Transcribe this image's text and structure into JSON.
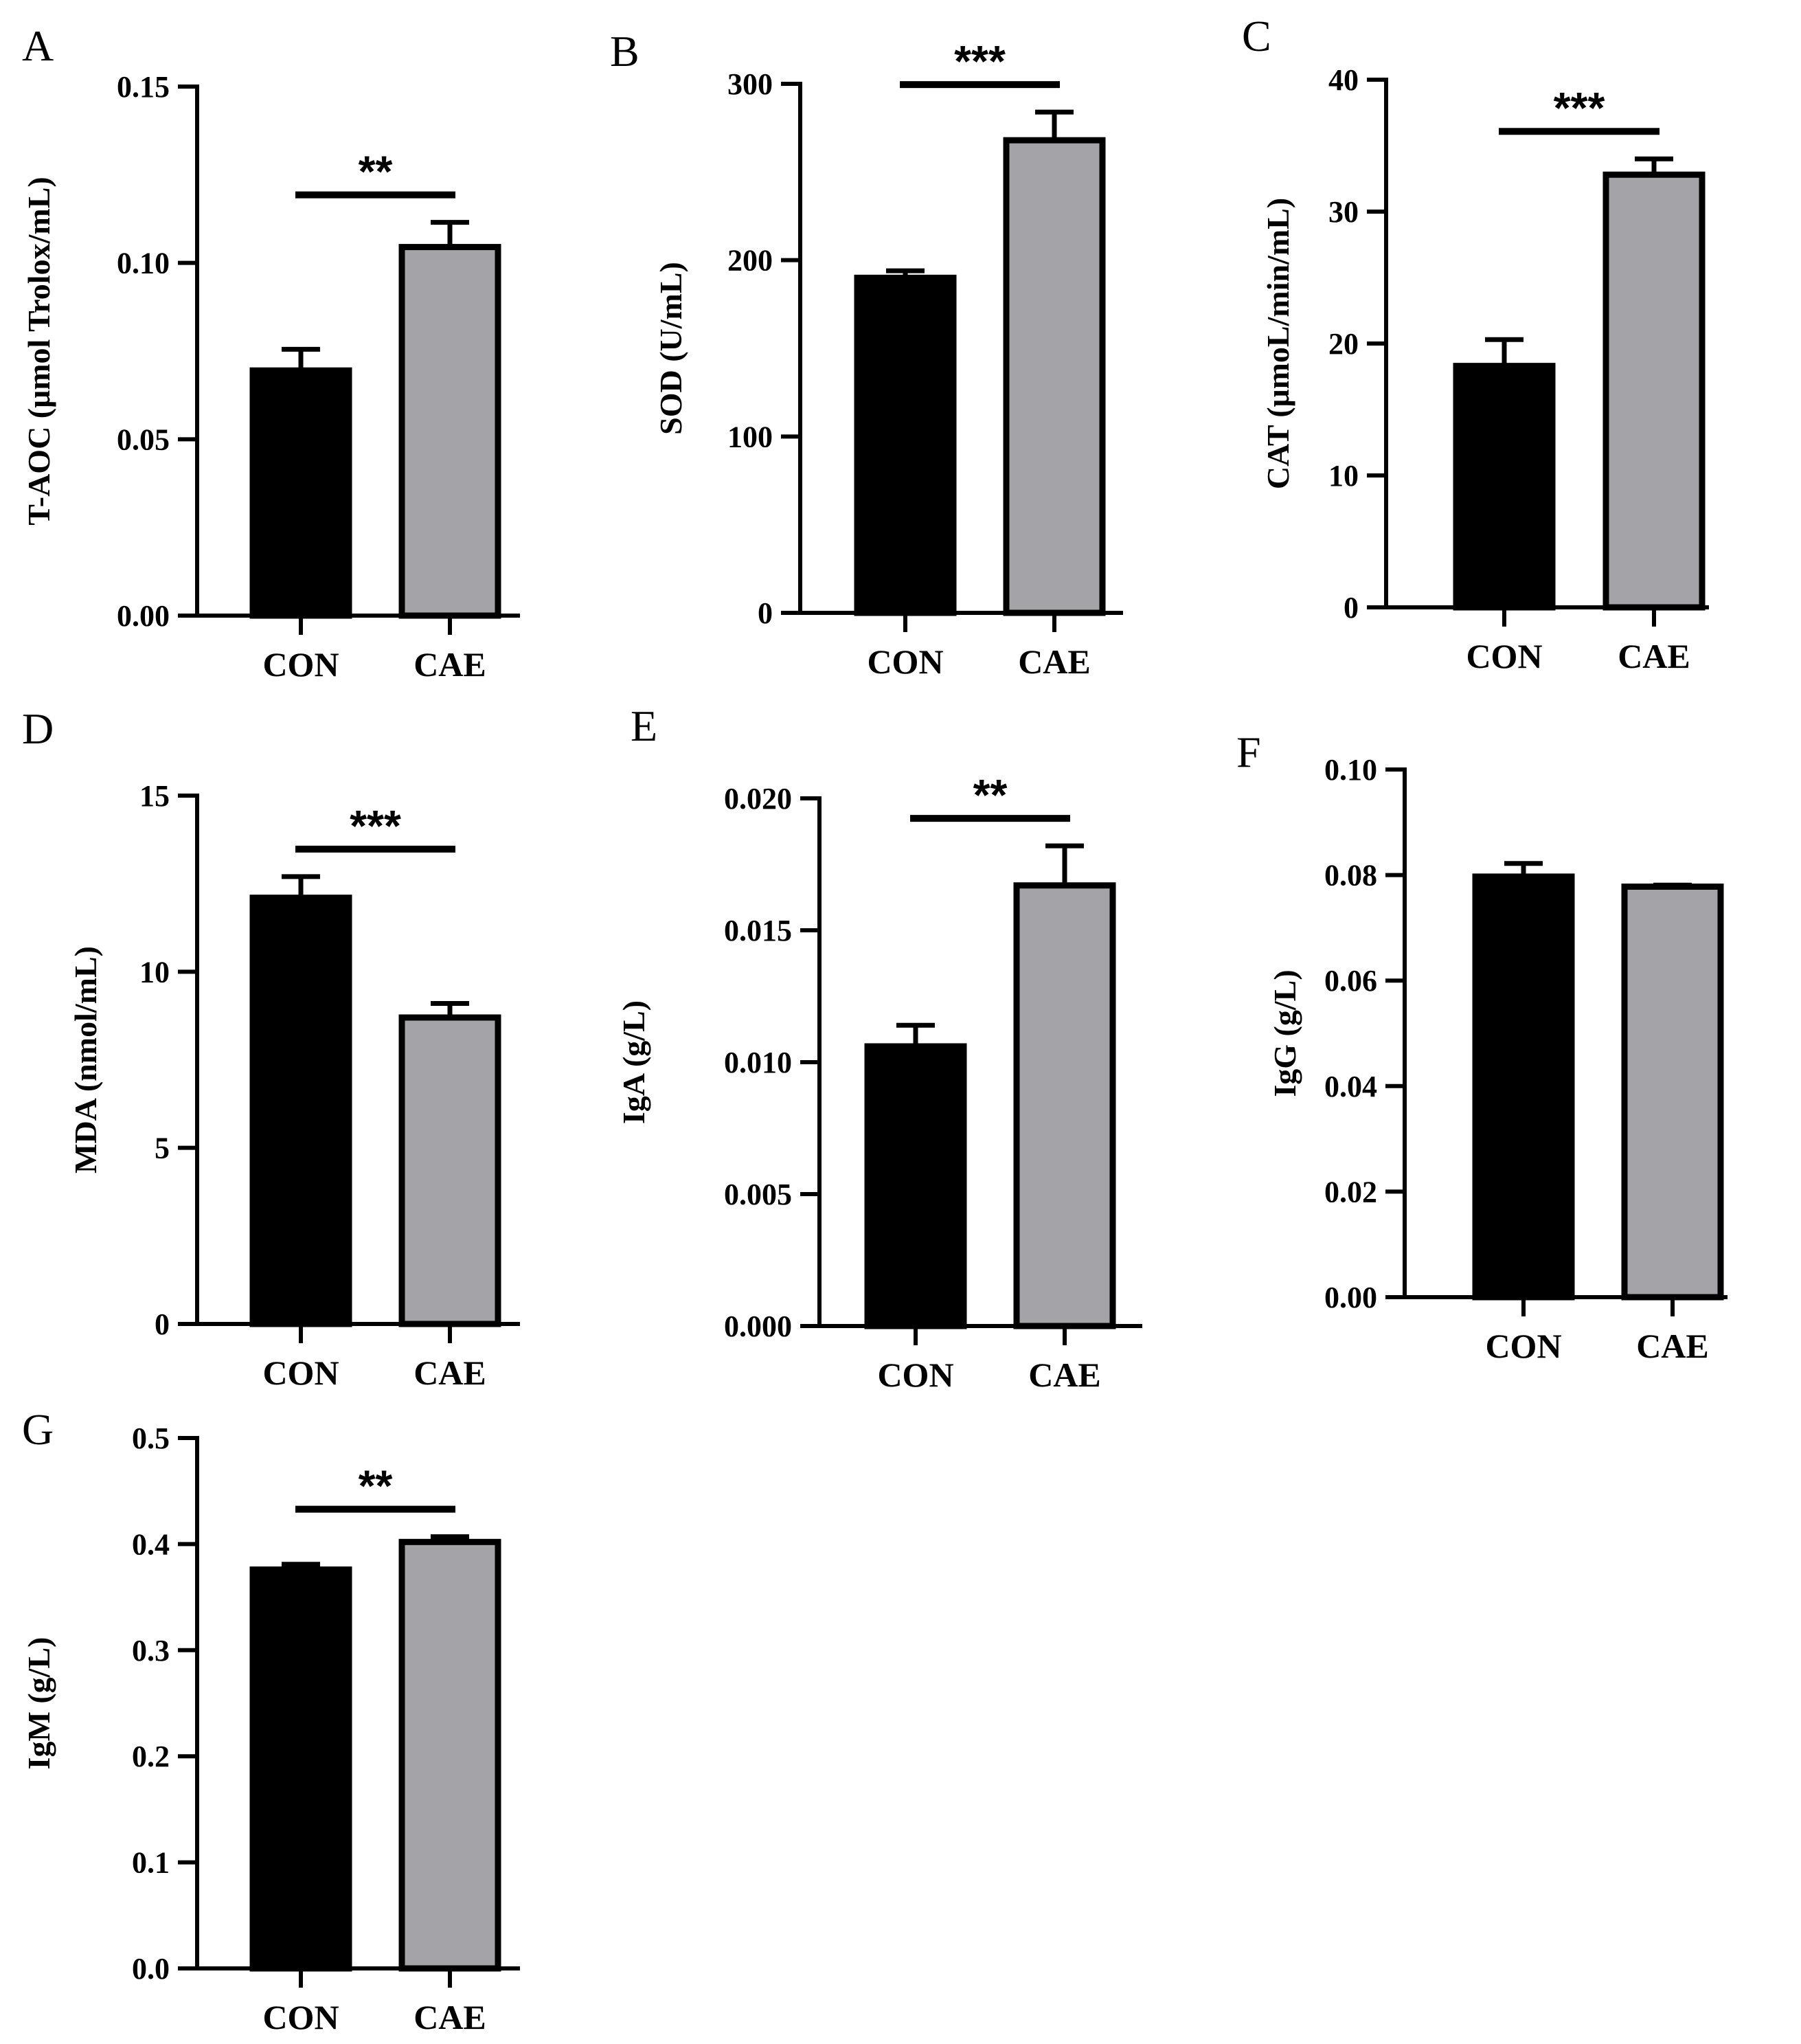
{
  "figure": {
    "colors": {
      "con_fill": "#000000",
      "cae_fill": "#a3a3a8",
      "outline": "#000000"
    }
  },
  "chart_data": [
    {
      "panel": "A",
      "type": "bar",
      "ylabel": "T-AOC (μmol Trolox/mL)",
      "categories": [
        "CON",
        "CAE"
      ],
      "values": [
        0.0695,
        0.1045
      ],
      "errors": [
        0.006,
        0.007
      ],
      "ylim": [
        0,
        0.15
      ],
      "yticks": [
        0.0,
        0.05,
        0.1,
        0.15
      ],
      "ytick_labels": [
        "0.00",
        "0.05",
        "0.10",
        "0.15"
      ],
      "significance": "**"
    },
    {
      "panel": "B",
      "type": "bar",
      "ylabel": "SOD (U/mL)",
      "categories": [
        "CON",
        "CAE"
      ],
      "values": [
        190,
        268
      ],
      "errors": [
        4,
        16
      ],
      "ylim": [
        0,
        300
      ],
      "yticks": [
        0,
        100,
        200,
        300
      ],
      "ytick_labels": [
        "0",
        "100",
        "200",
        "300"
      ],
      "significance": "***"
    },
    {
      "panel": "C",
      "type": "bar",
      "ylabel": "CAT (μmoL/min/mL)",
      "categories": [
        "CON",
        "CAE"
      ],
      "values": [
        18.3,
        32.8
      ],
      "errors": [
        2.0,
        1.2
      ],
      "ylim": [
        0,
        40
      ],
      "yticks": [
        0,
        10,
        20,
        30,
        40
      ],
      "ytick_labels": [
        "0",
        "10",
        "20",
        "30",
        "40"
      ],
      "significance": "***"
    },
    {
      "panel": "D",
      "type": "bar",
      "ylabel": "MDA (nmol/mL)",
      "categories": [
        "CON",
        "CAE"
      ],
      "values": [
        12.1,
        8.7
      ],
      "errors": [
        0.6,
        0.4
      ],
      "ylim": [
        0,
        15
      ],
      "yticks": [
        0,
        5,
        10,
        15
      ],
      "ytick_labels": [
        "0",
        "5",
        "10",
        "15"
      ],
      "significance": "***"
    },
    {
      "panel": "E",
      "type": "bar",
      "ylabel": "IgA (g/L)",
      "categories": [
        "CON",
        "CAE"
      ],
      "values": [
        0.0106,
        0.0167
      ],
      "errors": [
        0.0008,
        0.0015
      ],
      "ylim": [
        0,
        0.02
      ],
      "yticks": [
        0.0,
        0.005,
        0.01,
        0.015,
        0.02
      ],
      "ytick_labels": [
        "0.000",
        "0.005",
        "0.010",
        "0.015",
        "0.020"
      ],
      "significance": "**"
    },
    {
      "panel": "F",
      "type": "bar",
      "ylabel": "IgG (g/L)",
      "categories": [
        "CON",
        "CAE"
      ],
      "values": [
        0.0797,
        0.0778
      ],
      "errors": [
        0.0025,
        0.0003
      ],
      "ylim": [
        0,
        0.1
      ],
      "yticks": [
        0.0,
        0.02,
        0.04,
        0.06,
        0.08,
        0.1
      ],
      "ytick_labels": [
        "0.00",
        "0.02",
        "0.04",
        "0.06",
        "0.08",
        "0.10"
      ],
      "significance": ""
    },
    {
      "panel": "G",
      "type": "bar",
      "ylabel": "IgM (g/L)",
      "categories": [
        "CON",
        "CAE"
      ],
      "values": [
        0.376,
        0.402
      ],
      "errors": [
        0.005,
        0.005
      ],
      "ylim": [
        0,
        0.5
      ],
      "yticks": [
        0.0,
        0.1,
        0.2,
        0.3,
        0.4,
        0.5
      ],
      "ytick_labels": [
        "0.0",
        "0.1",
        "0.2",
        "0.3",
        "0.4",
        "0.5"
      ],
      "significance": "**"
    }
  ]
}
